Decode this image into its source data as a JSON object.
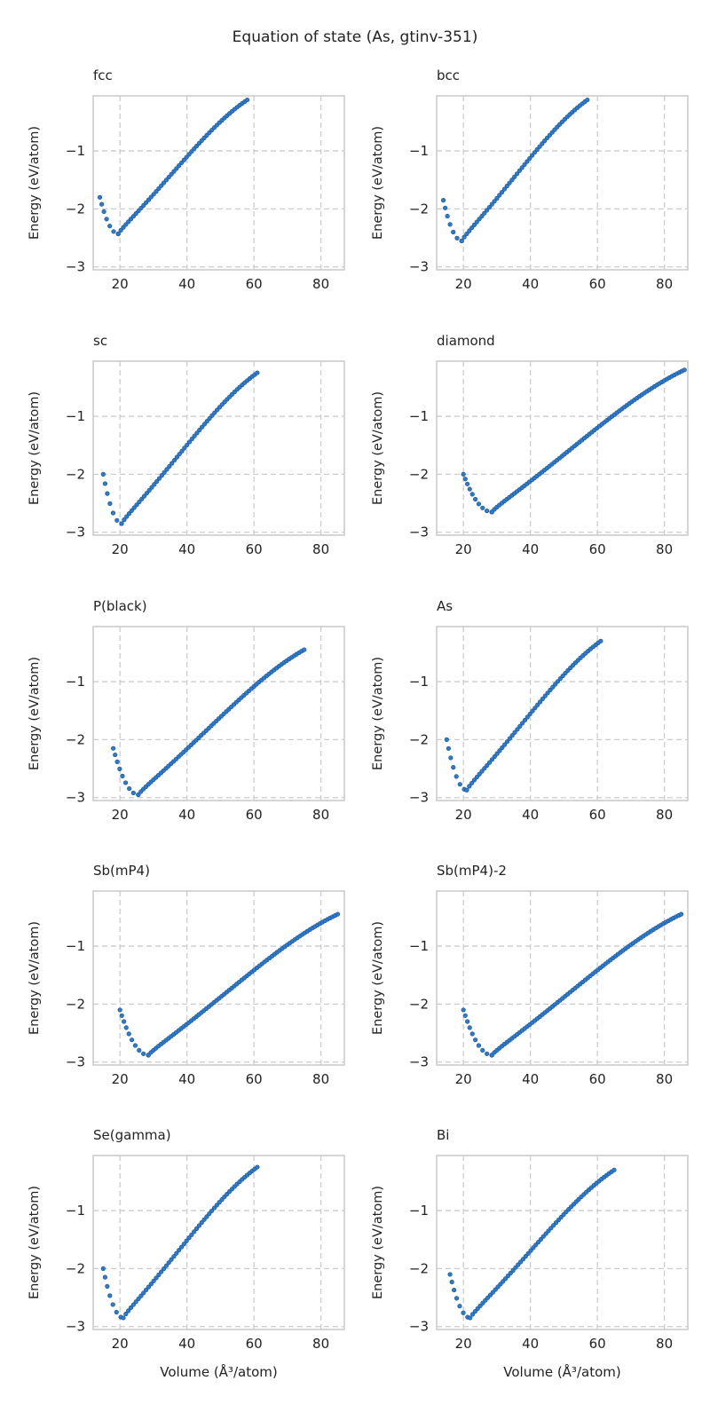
{
  "figure": {
    "title": "Equation of state (As, gtinv-351)"
  },
  "chart_data": [
    {
      "type": "scatter",
      "title": "fcc",
      "xlabel": "",
      "ylabel": "Energy (eV/atom)",
      "xlim": [
        12,
        87
      ],
      "ylim": [
        -3.05,
        -0.05
      ],
      "xticks": [
        20,
        40,
        60,
        80
      ],
      "yticks": [
        -3,
        -2,
        -1
      ],
      "grid": true,
      "curve": {
        "v_min": 14,
        "v_eq": 19.5,
        "v_max": 58,
        "e_start": -1.8,
        "e_min": -2.43,
        "e_end": -0.12
      }
    },
    {
      "type": "scatter",
      "title": "bcc",
      "xlabel": "",
      "ylabel": "Energy (eV/atom)",
      "xlim": [
        12,
        87
      ],
      "ylim": [
        -3.05,
        -0.05
      ],
      "xticks": [
        20,
        40,
        60,
        80
      ],
      "yticks": [
        -3,
        -2,
        -1
      ],
      "grid": true,
      "curve": {
        "v_min": 14,
        "v_eq": 19.5,
        "v_max": 57,
        "e_start": -1.85,
        "e_min": -2.55,
        "e_end": -0.12
      }
    },
    {
      "type": "scatter",
      "title": "sc",
      "xlabel": "",
      "ylabel": "Energy (eV/atom)",
      "xlim": [
        12,
        87
      ],
      "ylim": [
        -3.05,
        -0.05
      ],
      "xticks": [
        20,
        40,
        60,
        80
      ],
      "yticks": [
        -3,
        -2,
        -1
      ],
      "grid": true,
      "curve": {
        "v_min": 15,
        "v_eq": 20.5,
        "v_max": 61,
        "e_start": -2.0,
        "e_min": -2.85,
        "e_end": -0.25
      }
    },
    {
      "type": "scatter",
      "title": "diamond",
      "xlabel": "",
      "ylabel": "Energy (eV/atom)",
      "xlim": [
        12,
        87
      ],
      "ylim": [
        -3.05,
        -0.05
      ],
      "xticks": [
        20,
        40,
        60,
        80
      ],
      "yticks": [
        -3,
        -2,
        -1
      ],
      "grid": true,
      "curve": {
        "v_min": 20,
        "v_eq": 28.5,
        "v_max": 86,
        "e_start": -2.0,
        "e_min": -2.65,
        "e_end": -0.2
      }
    },
    {
      "type": "scatter",
      "title": "P(black)",
      "xlabel": "",
      "ylabel": "Energy (eV/atom)",
      "xlim": [
        12,
        87
      ],
      "ylim": [
        -3.05,
        -0.05
      ],
      "xticks": [
        20,
        40,
        60,
        80
      ],
      "yticks": [
        -3,
        -2,
        -1
      ],
      "grid": true,
      "curve": {
        "v_min": 18,
        "v_eq": 25.5,
        "v_max": 75,
        "e_start": -2.15,
        "e_min": -2.95,
        "e_end": -0.45
      }
    },
    {
      "type": "scatter",
      "title": "As",
      "xlabel": "",
      "ylabel": "Energy (eV/atom)",
      "xlim": [
        12,
        87
      ],
      "ylim": [
        -3.05,
        -0.05
      ],
      "xticks": [
        20,
        40,
        60,
        80
      ],
      "yticks": [
        -3,
        -2,
        -1
      ],
      "grid": true,
      "curve": {
        "v_min": 15,
        "v_eq": 21,
        "v_max": 61,
        "e_start": -2.0,
        "e_min": -2.87,
        "e_end": -0.3
      }
    },
    {
      "type": "scatter",
      "title": "Sb(mP4)",
      "xlabel": "",
      "ylabel": "Energy (eV/atom)",
      "xlim": [
        12,
        87
      ],
      "ylim": [
        -3.05,
        -0.05
      ],
      "xticks": [
        20,
        40,
        60,
        80
      ],
      "yticks": [
        -3,
        -2,
        -1
      ],
      "grid": true,
      "curve": {
        "v_min": 20,
        "v_eq": 28.5,
        "v_max": 85,
        "e_start": -2.1,
        "e_min": -2.88,
        "e_end": -0.45
      }
    },
    {
      "type": "scatter",
      "title": "Sb(mP4)-2",
      "xlabel": "",
      "ylabel": "Energy (eV/atom)",
      "xlim": [
        12,
        87
      ],
      "ylim": [
        -3.05,
        -0.05
      ],
      "xticks": [
        20,
        40,
        60,
        80
      ],
      "yticks": [
        -3,
        -2,
        -1
      ],
      "grid": true,
      "curve": {
        "v_min": 20,
        "v_eq": 28.5,
        "v_max": 85,
        "e_start": -2.1,
        "e_min": -2.88,
        "e_end": -0.45
      }
    },
    {
      "type": "scatter",
      "title": "Se(gamma)",
      "xlabel": "Volume (Å³/atom)",
      "ylabel": "Energy (eV/atom)",
      "xlim": [
        12,
        87
      ],
      "ylim": [
        -3.05,
        -0.05
      ],
      "xticks": [
        20,
        40,
        60,
        80
      ],
      "yticks": [
        -3,
        -2,
        -1
      ],
      "grid": true,
      "curve": {
        "v_min": 15,
        "v_eq": 21,
        "v_max": 61,
        "e_start": -2.0,
        "e_min": -2.85,
        "e_end": -0.25
      }
    },
    {
      "type": "scatter",
      "title": "Bi",
      "xlabel": "Volume (Å³/atom)",
      "ylabel": "Energy (eV/atom)",
      "xlim": [
        12,
        87
      ],
      "ylim": [
        -3.05,
        -0.05
      ],
      "xticks": [
        20,
        40,
        60,
        80
      ],
      "yticks": [
        -3,
        -2,
        -1
      ],
      "grid": true,
      "curve": {
        "v_min": 16,
        "v_eq": 22,
        "v_max": 65,
        "e_start": -2.1,
        "e_min": -2.85,
        "e_end": -0.3
      }
    }
  ],
  "colors": {
    "marker_fill": "#2b7bd0",
    "marker_edge": "#1a4f8a",
    "grid": "#cccccc",
    "spine": "#cccccc",
    "text": "#222222"
  }
}
